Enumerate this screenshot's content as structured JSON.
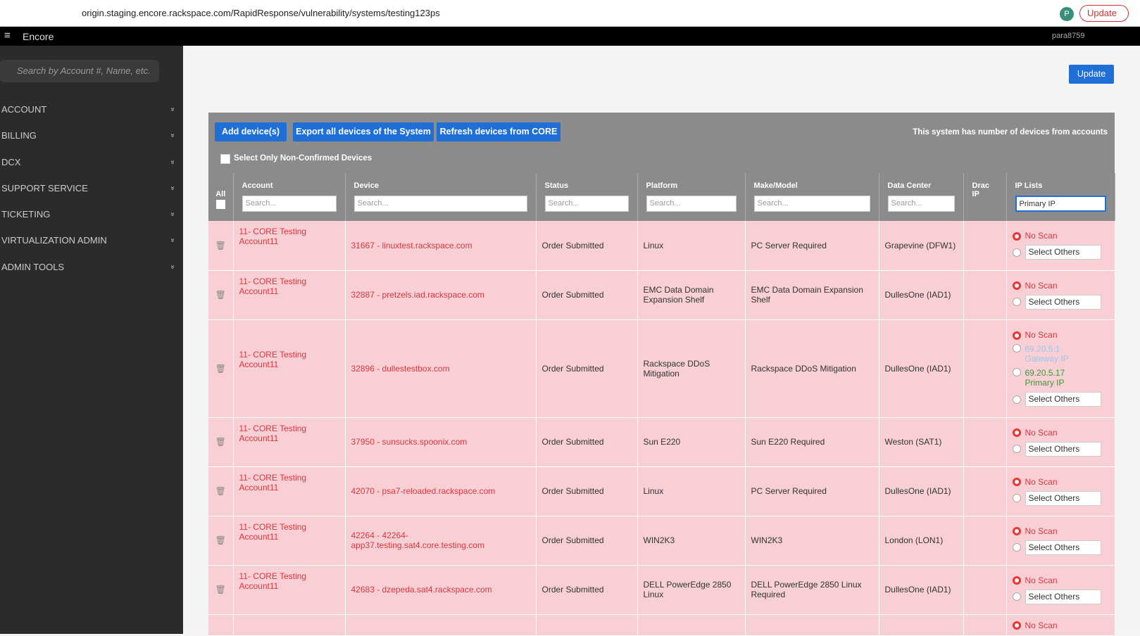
{
  "browser": {
    "url": "origin.staging.encore.rackspace.com/RapidResponse/vulnerability/systems/testing123ps",
    "profile": "P",
    "update": "Update"
  },
  "topbar": {
    "app": "Encore",
    "user": "para8759"
  },
  "sidebar": {
    "search_placeholder": "Search by Account #, Name, etc.",
    "menu": [
      "ACCOUNT",
      "BILLING",
      "DCX",
      "SUPPORT SERVICE",
      "TICKETING",
      "VIRTUALIZATION ADMIN",
      "ADMIN TOOLS"
    ]
  },
  "page": {
    "update_button": "Update"
  },
  "toolbar": {
    "buttons": [
      "Add device(s)",
      "Export all devices of the System",
      "Refresh devices from CORE"
    ],
    "note": "This system has number of devices from accounts",
    "filter": "Select Only Non-Confirmed Devices"
  },
  "table": {
    "select_all": "All",
    "columns": [
      "Account",
      "Device",
      "Status",
      "Platform",
      "Make/Model",
      "Data Center",
      "Drac IP",
      "IP Lists"
    ],
    "search_placeholder": "Search...",
    "ip_filter": "Primary IP",
    "no_scan": "No Scan",
    "select_others": "Select Others",
    "rows": [
      {
        "account": "11- CORE Testing Account11",
        "device": "31667 - linuxtest.rackspace.com",
        "status": "Order Submitted",
        "platform": "Linux",
        "make_model": "PC Server Required",
        "data_center": "Grapevine (DFW1)",
        "ips": []
      },
      {
        "account": "11- CORE Testing Account11",
        "device": "32887 - pretzels.iad.rackspace.com",
        "status": "Order Submitted",
        "platform": "EMC Data Domain Expansion Shelf",
        "make_model": "EMC Data Domain Expansion Shelf",
        "data_center": "DullesOne (IAD1)",
        "ips": []
      },
      {
        "account": "11- CORE Testing Account11",
        "device": "32896 - dullestestbox.com",
        "status": "Order Submitted",
        "platform": "Rackspace DDoS Mitigation",
        "make_model": "Rackspace DDoS Mitigation",
        "data_center": "DullesOne (IAD1)",
        "ips": [
          {
            "ip": "69.20.5.1",
            "type": "Gateway IP"
          },
          {
            "ip": "69.20.5.17",
            "type": "Primary IP"
          }
        ]
      },
      {
        "account": "11- CORE Testing Account11",
        "device": "37950 - sunsucks.spoonix.com",
        "status": "Order Submitted",
        "platform": "Sun E220",
        "make_model": "Sun E220 Required",
        "data_center": "Weston (SAT1)",
        "ips": []
      },
      {
        "account": "11- CORE Testing Account11",
        "device": "42070 - psa7-reloaded.rackspace.com",
        "status": "Order Submitted",
        "platform": "Linux",
        "make_model": "PC Server Required",
        "data_center": "DullesOne (IAD1)",
        "ips": []
      },
      {
        "account": "11- CORE Testing Account11",
        "device": "42264 - 42264-app37.testing.sat4.core.testing.com",
        "status": "Order Submitted",
        "platform": "WIN2K3",
        "make_model": "WIN2K3",
        "data_center": "London (LON1)",
        "ips": []
      },
      {
        "account": "11- CORE Testing Account11",
        "device": "42683 - dzepeda.sat4.rackspace.com",
        "status": "Order Submitted",
        "platform": "DELL PowerEdge 2850 Linux",
        "make_model": "DELL PowerEdge 2850 Linux Required",
        "data_center": "DullesOne (IAD1)",
        "ips": []
      }
    ]
  }
}
